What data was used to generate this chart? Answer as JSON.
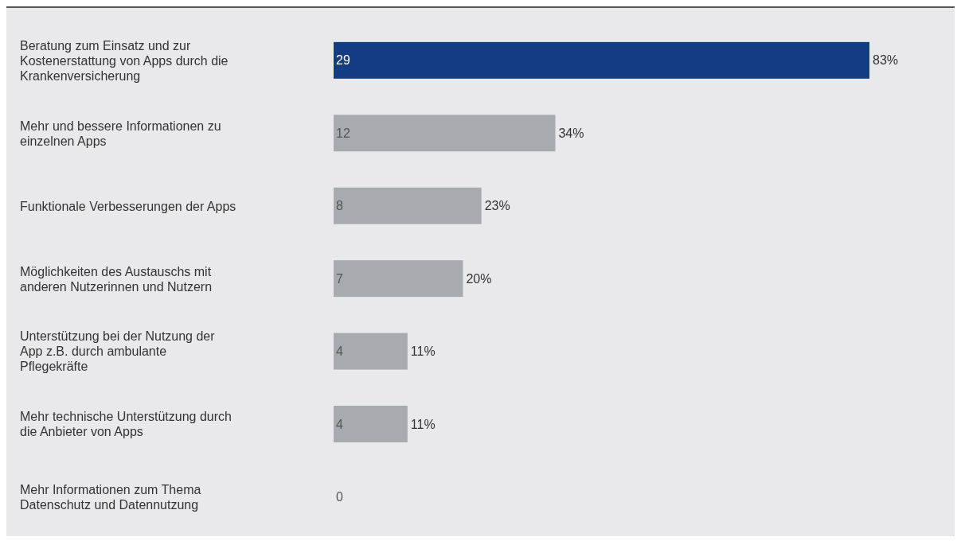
{
  "chart_data": {
    "type": "bar",
    "orientation": "horizontal",
    "categories": [
      "Beratung zum Einsatz und zur Kostenerstattung von Apps durch die Krankenversicherung",
      "Mehr und bessere Informationen zu einzelnen Apps",
      "Funktionale Verbesserungen der Apps",
      "Möglichkeiten des Austauschs mit anderen Nutzerinnen und Nutzern",
      "Unterstützung bei der Nutzung der App z.B. durch ambulante Pflegekräfte",
      "Mehr technische Unterstützung durch die Anbieter von Apps",
      "Mehr Informationen zum Thema Datenschutz und Datennutzung"
    ],
    "values": [
      29,
      12,
      8,
      7,
      4,
      4,
      0
    ],
    "colors": [
      "#143c82",
      "#a7abb0",
      "#a7abb0",
      "#a7abb0",
      "#a7abb0",
      "#a7abb0",
      "#a7abb0"
    ],
    "data_labels": true,
    "tick_labels": "y",
    "annotations": [
      {
        "text": "83%",
        "x": 29,
        "y": "Beratung zum Einsatz und zur Kostenerstattung von Apps durch die Krankenversicherung"
      },
      {
        "text": "34%",
        "x": 12,
        "y": "Mehr und bessere Informationen zu einzelnen Apps"
      },
      {
        "text": "23%",
        "x": 8,
        "y": "Funktionale Verbesserungen der Apps"
      },
      {
        "text": "20%",
        "x": 7,
        "y": "Möglichkeiten des Austauschs mit anderen Nutzerinnen und Nutzern"
      },
      {
        "text": "11%",
        "x": 4,
        "y": "Unterstützung bei der Nutzung der App z.B. durch ambulante Pflegekräfte"
      },
      {
        "text": "11%",
        "x": 4,
        "y": "Mehr technische Unterstützung durch die Anbieter von Apps"
      }
    ]
  }
}
